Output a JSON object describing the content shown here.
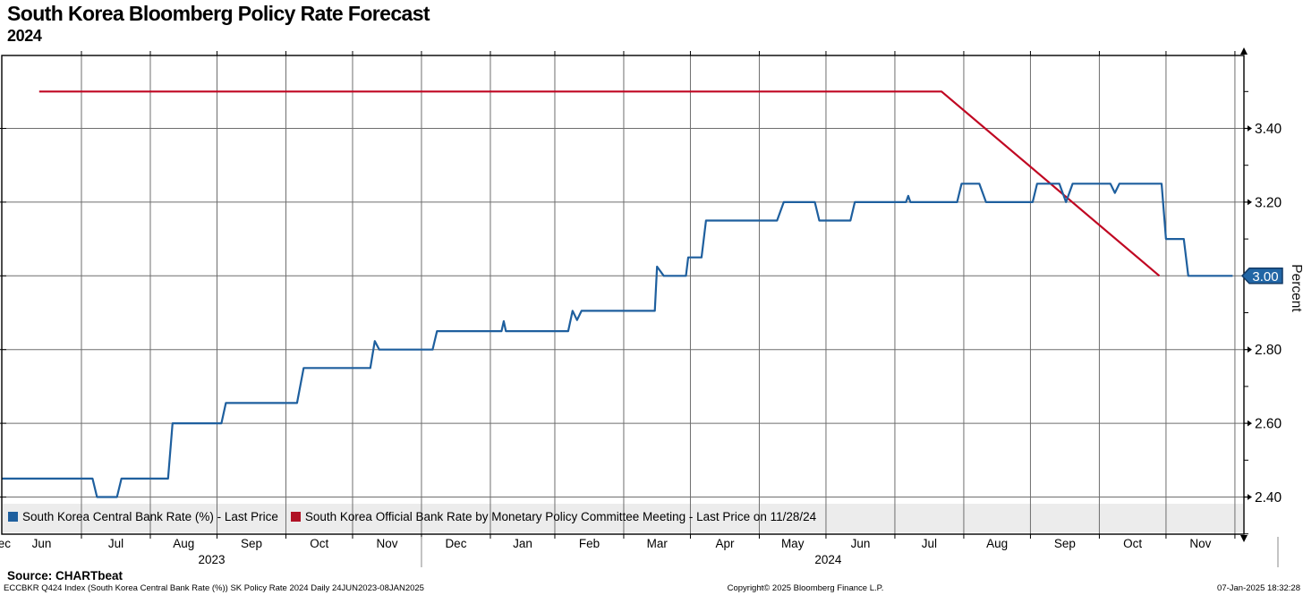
{
  "header": {
    "title": "South Korea Bloomberg Policy Rate Forecast",
    "subtitle": "2024"
  },
  "legend": {
    "items": [
      {
        "label": "South Korea Central Bank Rate (%) - Last Price",
        "color": "#1e5f9e"
      },
      {
        "label": "South Korea Official Bank Rate by Monetary Policy Committee Meeting - Last Price on 11/28/24",
        "color": "#b01225"
      }
    ]
  },
  "footer": {
    "source": "Source: CHARTbeat",
    "ticker_info": "ECCBKR Q424 Index (South Korea Central Bank Rate (%)) SK Policy Rate 2024  Daily 24JUN2023-08JAN2025",
    "copyright": "Copyright© 2025 Bloomberg Finance L.P.",
    "timestamp": "07-Jan-2025 18:32:28"
  },
  "chart_data": {
    "type": "line",
    "x_type": "date",
    "x_range": [
      "2023-06-24",
      "2025-01-04"
    ],
    "ylabel": "Percent",
    "ylim": [
      2.299,
      3.597
    ],
    "y_major_ticks": [
      2.4,
      2.6,
      2.8,
      3.0,
      3.2,
      3.4
    ],
    "y_minor_ticks": [
      2.3,
      2.5,
      2.7,
      2.9,
      3.1,
      3.3,
      3.5
    ],
    "last_value_badge": {
      "text": "3.00",
      "value": 3.0,
      "fill": "#2266a5",
      "border": "#123a66"
    },
    "month_labels": [
      "Jun",
      "Jul",
      "Aug",
      "Sep",
      "Oct",
      "Nov",
      "Dec",
      "Jan",
      "Feb",
      "Mar",
      "Apr",
      "May",
      "Jun",
      "Jul",
      "Aug",
      "Sep",
      "Oct",
      "Nov",
      "Dec"
    ],
    "year_labels": [
      {
        "label": "2023",
        "span": [
          "2023-06-24",
          "2024-01-01"
        ]
      },
      {
        "label": "2024",
        "span": [
          "2024-01-01",
          "2025-01-01"
        ]
      }
    ],
    "grid": true,
    "legend_position": "bottom",
    "series": [
      {
        "name": "South Korea Central Bank Rate (%) - Last Price",
        "color": "#1e5f9e",
        "points": [
          [
            "2023-06-26",
            2.45
          ],
          [
            "2023-08-06",
            2.45
          ],
          [
            "2023-08-08",
            2.4
          ],
          [
            "2023-08-17",
            2.4
          ],
          [
            "2023-08-19",
            2.45
          ],
          [
            "2023-09-09",
            2.45
          ],
          [
            "2023-09-11",
            2.6
          ],
          [
            "2023-10-03",
            2.6
          ],
          [
            "2023-10-05",
            2.655
          ],
          [
            "2023-11-06",
            2.655
          ],
          [
            "2023-11-09",
            2.75
          ],
          [
            "2023-12-09",
            2.75
          ],
          [
            "2023-12-11",
            2.823
          ],
          [
            "2023-12-13",
            2.8
          ],
          [
            "2024-01-06",
            2.8
          ],
          [
            "2024-01-08",
            2.85
          ],
          [
            "2024-02-06",
            2.85
          ],
          [
            "2024-02-07",
            2.877
          ],
          [
            "2024-02-08",
            2.85
          ],
          [
            "2024-03-07",
            2.85
          ],
          [
            "2024-03-09",
            2.905
          ],
          [
            "2024-03-11",
            2.88
          ],
          [
            "2024-03-13",
            2.905
          ],
          [
            "2024-04-15",
            2.905
          ],
          [
            "2024-04-16",
            3.025
          ],
          [
            "2024-04-19",
            3.0
          ],
          [
            "2024-04-29",
            3.0
          ],
          [
            "2024-04-30",
            3.05
          ],
          [
            "2024-05-06",
            3.05
          ],
          [
            "2024-05-08",
            3.15
          ],
          [
            "2024-06-09",
            3.15
          ],
          [
            "2024-06-12",
            3.2
          ],
          [
            "2024-06-26",
            3.2
          ],
          [
            "2024-06-28",
            3.15
          ],
          [
            "2024-07-12",
            3.15
          ],
          [
            "2024-07-14",
            3.2
          ],
          [
            "2024-08-06",
            3.2
          ],
          [
            "2024-08-07",
            3.217
          ],
          [
            "2024-08-08",
            3.2
          ],
          [
            "2024-08-29",
            3.2
          ],
          [
            "2024-08-31",
            3.25
          ],
          [
            "2024-09-08",
            3.25
          ],
          [
            "2024-09-11",
            3.2
          ],
          [
            "2024-10-02",
            3.2
          ],
          [
            "2024-10-04",
            3.25
          ],
          [
            "2024-10-14",
            3.25
          ],
          [
            "2024-10-17",
            3.2
          ],
          [
            "2024-10-20",
            3.25
          ],
          [
            "2024-11-06",
            3.25
          ],
          [
            "2024-11-08",
            3.225
          ],
          [
            "2024-11-10",
            3.25
          ],
          [
            "2024-11-29",
            3.25
          ],
          [
            "2024-12-01",
            3.1
          ],
          [
            "2024-12-09",
            3.1
          ],
          [
            "2024-12-11",
            3.0
          ],
          [
            "2024-12-31",
            3.0
          ]
        ]
      },
      {
        "name": "South Korea Official Bank Rate by Monetary Policy Committee Meeting - Last Price on 11/28/24",
        "color": "#c00722",
        "points": [
          [
            "2023-07-13",
            3.5
          ],
          [
            "2024-08-22",
            3.5
          ],
          [
            "2024-11-28",
            3.0
          ]
        ]
      }
    ]
  }
}
